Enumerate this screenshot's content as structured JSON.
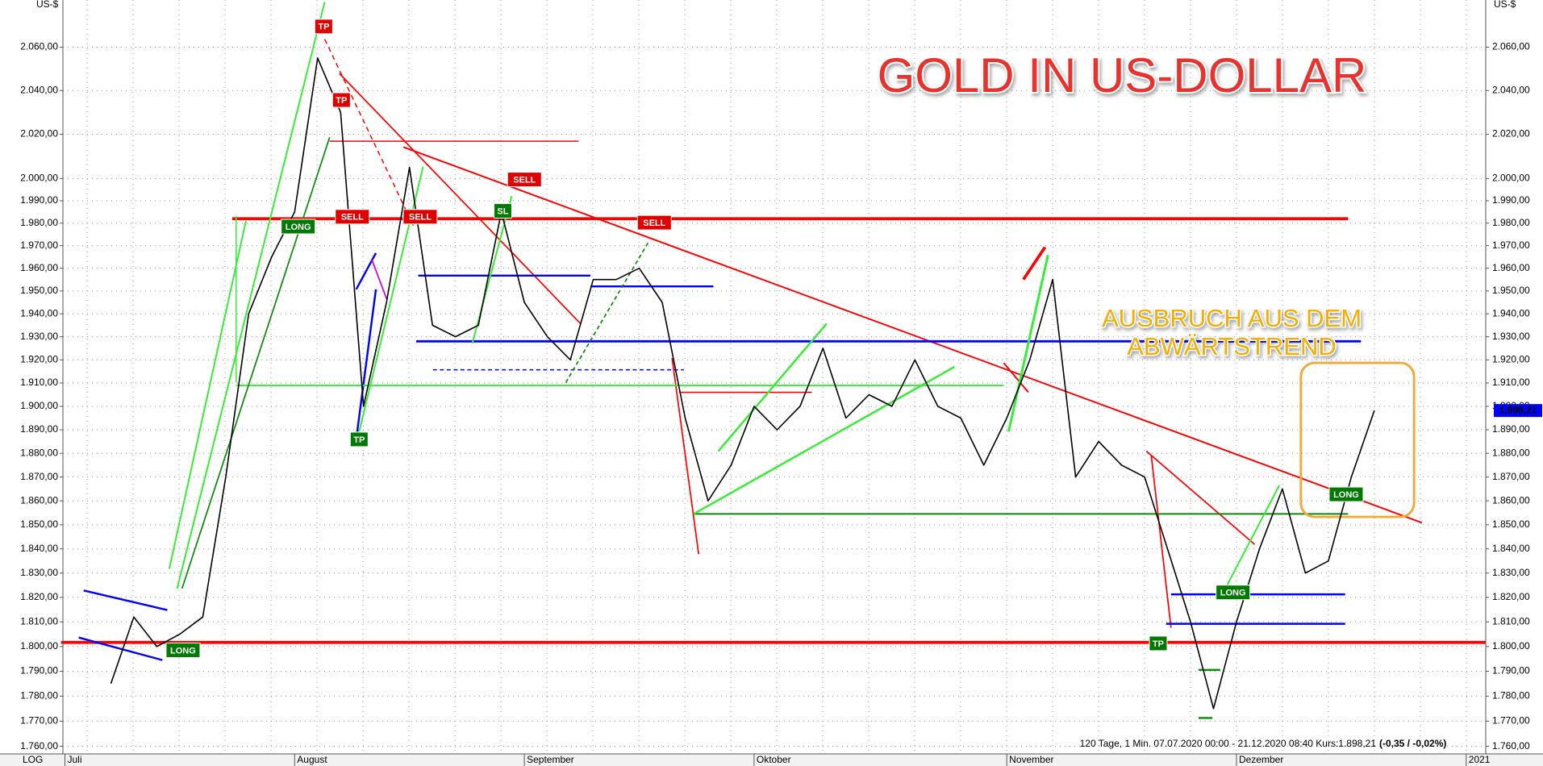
{
  "chart_data": {
    "type": "line",
    "title": "GOLD IN US-DOLLAR",
    "annotation": [
      "AUSBRUCH AUS DEM",
      "ABWÄRTSTREND"
    ],
    "y_unit": "US-$",
    "scale_label": "LOG",
    "info": "120 Tage, 1 Min. 07.07.2020 00:00 - 21.12.2020 08:40 Kurs:1.898,21",
    "change": "(-0,35 / -0,02%)",
    "log_scale": true,
    "grid": true,
    "categories": [
      "Juli",
      null,
      null,
      null,
      null,
      null,
      null,
      null,
      null,
      null,
      "August",
      null,
      null,
      null,
      null,
      null,
      null,
      null,
      null,
      null,
      "September",
      null,
      null,
      null,
      null,
      null,
      null,
      null,
      null,
      null,
      "Oktober",
      null,
      null,
      null,
      null,
      null,
      null,
      null,
      null,
      null,
      null,
      "November",
      null,
      null,
      null,
      null,
      null,
      null,
      null,
      null,
      null,
      "Dezember",
      null,
      null,
      null,
      null,
      null,
      null,
      null,
      null,
      null,
      "2021"
    ],
    "series": [
      {
        "color": "#000000",
        "values": [
          null,
          null,
          1785,
          1812,
          1800,
          1805,
          1812,
          1870,
          1940,
          1965,
          1985,
          2055,
          2030,
          1900,
          1945,
          2005,
          1935,
          1930,
          1935,
          1985,
          1945,
          1930,
          1920,
          1955,
          1955,
          1960,
          1945,
          1895,
          1860,
          1875,
          1900,
          1890,
          1900,
          1925,
          1895,
          1905,
          1900,
          1920,
          1900,
          1895,
          1875,
          1895,
          1920,
          1955,
          1870,
          1885,
          1875,
          1870,
          1840,
          1810,
          1775,
          1810,
          1840,
          1865,
          1830,
          1835,
          1870,
          1898.21,
          null,
          null,
          null,
          null
        ],
        "value_labels": [
          null,
          null,
          null,
          null,
          null,
          null,
          null,
          null,
          null,
          null,
          null,
          null,
          null,
          null,
          null,
          null,
          null,
          null,
          null,
          null,
          null,
          null,
          null,
          null,
          null,
          null,
          null,
          null,
          null,
          null,
          null,
          null,
          null,
          null,
          null,
          null,
          null,
          null,
          null,
          null,
          null,
          null,
          null,
          null,
          null,
          null,
          null,
          null,
          null,
          null,
          null,
          null,
          null,
          null,
          null,
          null,
          null,
          "1.898,21",
          null,
          null,
          null,
          null
        ]
      }
    ],
    "ylim": [
      1757,
      2082
    ],
    "yticks": [
      {
        "value": 1760,
        "label": "1.760,00"
      },
      {
        "value": 1770,
        "label": "1.770,00"
      },
      {
        "value": 1780,
        "label": "1.780,00"
      },
      {
        "value": 1790,
        "label": "1.790,00"
      },
      {
        "value": 1800,
        "label": "1.800,00"
      },
      {
        "value": 1810,
        "label": "1.810,00"
      },
      {
        "value": 1820,
        "label": "1.820,00"
      },
      {
        "value": 1830,
        "label": "1.830,00"
      },
      {
        "value": 1840,
        "label": "1.840,00"
      },
      {
        "value": 1850,
        "label": "1.850,00"
      },
      {
        "value": 1860,
        "label": "1.860,00"
      },
      {
        "value": 1870,
        "label": "1.870,00"
      },
      {
        "value": 1880,
        "label": "1.880,00"
      },
      {
        "value": 1890,
        "label": "1.890,00"
      },
      {
        "value": 1900,
        "label": "1.900,00"
      },
      {
        "value": 1910,
        "label": "1.910,00"
      },
      {
        "value": 1920,
        "label": "1.920,00"
      },
      {
        "value": 1930,
        "label": "1.930,00"
      },
      {
        "value": 1940,
        "label": "1.940,00"
      },
      {
        "value": 1950,
        "label": "1.950,00"
      },
      {
        "value": 1960,
        "label": "1.960,00"
      },
      {
        "value": 1970,
        "label": "1.970,00"
      },
      {
        "value": 1980,
        "label": "1.980,00"
      },
      {
        "value": 1990,
        "label": "1.990,00"
      },
      {
        "value": 2000,
        "label": "2.000,00"
      },
      {
        "value": 2020,
        "label": "2.020,00"
      },
      {
        "value": 2040,
        "label": "2.040,00"
      },
      {
        "value": 2060,
        "label": "2.060,00"
      }
    ],
    "signals": [
      {
        "text": "TP",
        "color": "#e00000"
      },
      {
        "text": "TP",
        "color": "#e00000"
      },
      {
        "text": "SELL",
        "color": "#e00000"
      },
      {
        "text": "SELL",
        "color": "#e00000"
      },
      {
        "text": "SELL",
        "color": "#e00000"
      },
      {
        "text": "SL",
        "color": "#007a00"
      },
      {
        "text": "SELL",
        "color": "#e00000"
      },
      {
        "text": "LONG",
        "color": "#007a00"
      },
      {
        "text": "TP",
        "color": "#007a00"
      },
      {
        "text": "LONG",
        "color": "#007a00"
      },
      {
        "text": "LONG",
        "color": "#007a00"
      },
      {
        "text": "TP",
        "color": "#007a00"
      },
      {
        "text": "LONG",
        "color": "#007a00"
      }
    ]
  }
}
